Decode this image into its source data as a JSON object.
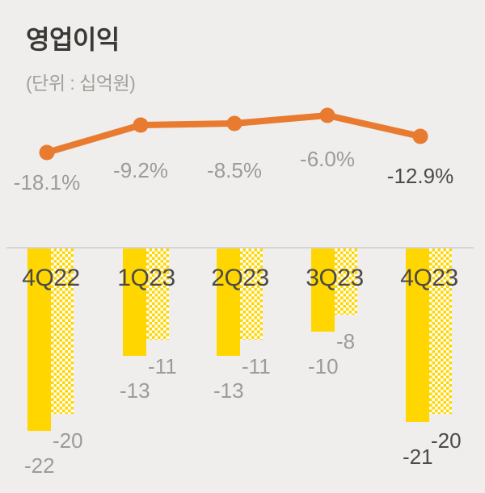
{
  "header": {
    "title": "영업이익",
    "unit_label": "(단위 : 십억원)"
  },
  "chart_data": {
    "type": "combo",
    "title": "영업이익",
    "unit": "(단위 : 십억원)",
    "categories": [
      "4Q22",
      "1Q23",
      "2Q23",
      "3Q23",
      "4Q23"
    ],
    "line": {
      "type": "line",
      "values": [
        -18.1,
        -9.2,
        -8.5,
        -6.0,
        -12.9
      ],
      "labels": [
        "-18.1%",
        "-9.2%",
        "-8.5%",
        "-6.0%",
        "-12.9%"
      ],
      "emphasized_index": 4
    },
    "bars": {
      "type": "bar",
      "series": [
        {
          "name": "primary-solid",
          "values": [
            -22,
            -13,
            -13,
            -10,
            -21
          ],
          "labels": [
            "-22",
            "-13",
            "-13",
            "-10",
            "-21"
          ]
        },
        {
          "name": "secondary-pattern",
          "values": [
            -20,
            -11,
            -11,
            -8,
            -20
          ],
          "labels": [
            "-20",
            "-11",
            "-11",
            "-8",
            "-20"
          ]
        }
      ],
      "emphasized_category_index": 4
    },
    "colors": {
      "line": "#e87b30",
      "bar": "#ffd600",
      "label_gray": "#9b9b9b",
      "label_dark": "#4b4b4b",
      "background": "#efeeec"
    },
    "legend": "none",
    "grid": "off"
  }
}
